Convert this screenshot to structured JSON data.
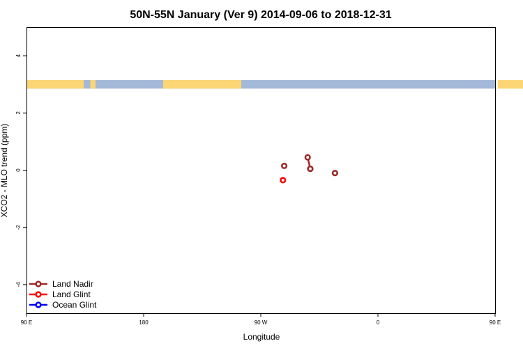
{
  "chart_data": {
    "type": "scatter",
    "title": "50N-55N January (Ver 9)   2014-09-06 to 2018-12-31",
    "xlabel": "Longitude",
    "ylabel": "XCO2 - MLO trend (ppm)",
    "xlim": [
      90,
      450
    ],
    "ylim": [
      -5,
      5
    ],
    "x_ticks": [
      {
        "value": 90,
        "label": "90 E"
      },
      {
        "value": 180,
        "label": "180"
      },
      {
        "value": 270,
        "label": "90 W"
      },
      {
        "value": 360,
        "label": "0"
      },
      {
        "value": 450,
        "label": "90 E"
      },
      {
        "value": 540,
        "label": "180"
      }
    ],
    "y_ticks": [
      {
        "value": -4,
        "label": "-4"
      },
      {
        "value": -2,
        "label": "-2"
      },
      {
        "value": 0,
        "label": "0"
      },
      {
        "value": 2,
        "label": "2"
      },
      {
        "value": 4,
        "label": "4"
      }
    ],
    "legend_position": "bottom-left",
    "surface_band": {
      "y_range": [
        2.85,
        3.15
      ],
      "land_color": "#fcd675",
      "ocean_color": "#a4b8d8",
      "land_segments": [
        [
          90,
          134
        ],
        [
          139,
          143
        ],
        [
          195,
          255
        ],
        [
          452,
          504
        ],
        [
          517,
          527
        ]
      ]
    },
    "series": [
      {
        "name": "Land Nadir",
        "color": "#9b2b2b",
        "points": [
          {
            "x": 288,
            "y": 0.15
          },
          {
            "x": 306,
            "y": 0.45
          },
          {
            "x": 308,
            "y": 0.05
          },
          {
            "x": 308,
            "y": 0.05
          },
          {
            "x": 327,
            "y": -0.1
          }
        ],
        "segments": [
          [
            1,
            2
          ]
        ]
      },
      {
        "name": "Land Glint",
        "color": "#ff0000",
        "points": [
          {
            "x": 287,
            "y": -0.35
          }
        ],
        "segments": []
      },
      {
        "name": "Ocean Glint",
        "color": "#0000ff",
        "points": [],
        "segments": []
      }
    ]
  }
}
